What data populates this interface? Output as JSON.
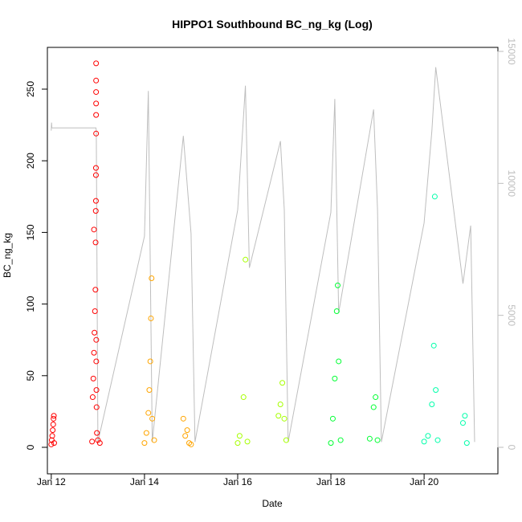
{
  "chart_data": {
    "type": "scatter",
    "title": "HIPPO1 Southbound BC_ng_kg (Log)",
    "xlabel": "Date",
    "ylabel": "BC_ng_kg",
    "ylim": [
      0,
      270
    ],
    "y_ticks": [
      0,
      50,
      100,
      150,
      200,
      250
    ],
    "xlim": [
      "2009-01-11T22:00",
      "2009-01-21T14:00"
    ],
    "x_ticks": [
      {
        "label": "Jan 12",
        "value": "2009-01-12"
      },
      {
        "label": "Jan 14",
        "value": "2009-01-14"
      },
      {
        "label": "Jan 16",
        "value": "2009-01-16"
      },
      {
        "label": "Jan 18",
        "value": "2009-01-18"
      },
      {
        "label": "Jan 20",
        "value": "2009-01-20"
      }
    ],
    "secondary_axis": {
      "ylim": [
        -300,
        15000
      ],
      "ticks": [
        0,
        5000,
        10000,
        15000
      ],
      "color": "#bebebe"
    },
    "series": [
      {
        "color": "#ff0000",
        "points": [
          [
            "2009-01-12T00:00",
            2
          ],
          [
            "2009-01-12T00:15",
            5
          ],
          [
            "2009-01-12T00:30",
            8
          ],
          [
            "2009-01-12T00:45",
            12
          ],
          [
            "2009-01-12T01:00",
            16
          ],
          [
            "2009-01-12T01:10",
            20
          ],
          [
            "2009-01-12T01:20",
            22
          ],
          [
            "2009-01-12T01:30",
            3
          ],
          [
            "2009-01-12T21:00",
            4
          ],
          [
            "2009-01-12T21:20",
            35
          ],
          [
            "2009-01-12T21:40",
            48
          ],
          [
            "2009-01-12T22:00",
            66
          ],
          [
            "2009-01-12T22:00",
            152
          ],
          [
            "2009-01-12T22:15",
            80
          ],
          [
            "2009-01-12T22:30",
            95
          ],
          [
            "2009-01-12T22:45",
            110
          ],
          [
            "2009-01-12T22:50",
            143
          ],
          [
            "2009-01-12T22:55",
            165
          ],
          [
            "2009-01-12T23:00",
            172
          ],
          [
            "2009-01-12T23:00",
            190
          ],
          [
            "2009-01-12T23:00",
            195
          ],
          [
            "2009-01-12T23:05",
            219
          ],
          [
            "2009-01-12T23:05",
            232
          ],
          [
            "2009-01-12T23:05",
            240
          ],
          [
            "2009-01-12T23:05",
            248
          ],
          [
            "2009-01-12T23:05",
            256
          ],
          [
            "2009-01-12T23:05",
            268
          ],
          [
            "2009-01-12T23:10",
            75
          ],
          [
            "2009-01-12T23:10",
            60
          ],
          [
            "2009-01-12T23:15",
            40
          ],
          [
            "2009-01-12T23:20",
            28
          ],
          [
            "2009-01-12T23:30",
            10
          ],
          [
            "2009-01-13T00:00",
            5
          ],
          [
            "2009-01-13T01:00",
            3
          ]
        ]
      },
      {
        "color": "#ffa500",
        "points": [
          [
            "2009-01-14T00:00",
            3
          ],
          [
            "2009-01-14T01:00",
            10
          ],
          [
            "2009-01-14T02:00",
            24
          ],
          [
            "2009-01-14T02:30",
            40
          ],
          [
            "2009-01-14T03:00",
            60
          ],
          [
            "2009-01-14T03:20",
            90
          ],
          [
            "2009-01-14T03:40",
            118
          ],
          [
            "2009-01-14T04:00",
            20
          ],
          [
            "2009-01-14T05:00",
            5
          ],
          [
            "2009-01-14T20:00",
            20
          ],
          [
            "2009-01-14T21:00",
            8
          ],
          [
            "2009-01-14T22:00",
            12
          ],
          [
            "2009-01-14T23:00",
            3
          ],
          [
            "2009-01-15T00:00",
            2
          ]
        ]
      },
      {
        "color": "#a6ff00",
        "points": [
          [
            "2009-01-16T00:00",
            3
          ],
          [
            "2009-01-16T01:00",
            8
          ],
          [
            "2009-01-16T03:00",
            35
          ],
          [
            "2009-01-16T04:00",
            131
          ],
          [
            "2009-01-16T05:00",
            4
          ],
          [
            "2009-01-16T21:00",
            22
          ],
          [
            "2009-01-16T22:00",
            30
          ],
          [
            "2009-01-16T23:00",
            45
          ],
          [
            "2009-01-17T00:00",
            20
          ],
          [
            "2009-01-17T01:00",
            5
          ]
        ]
      },
      {
        "color": "#00ff33",
        "points": [
          [
            "2009-01-18T00:00",
            3
          ],
          [
            "2009-01-18T01:00",
            20
          ],
          [
            "2009-01-18T02:00",
            48
          ],
          [
            "2009-01-18T03:00",
            95
          ],
          [
            "2009-01-18T03:30",
            113
          ],
          [
            "2009-01-18T04:00",
            60
          ],
          [
            "2009-01-18T05:00",
            5
          ],
          [
            "2009-01-18T20:00",
            6
          ],
          [
            "2009-01-18T22:00",
            28
          ],
          [
            "2009-01-18T23:00",
            35
          ],
          [
            "2009-01-19T00:00",
            5
          ]
        ]
      },
      {
        "color": "#00ffaa",
        "points": [
          [
            "2009-01-20T00:00",
            4
          ],
          [
            "2009-01-20T02:00",
            8
          ],
          [
            "2009-01-20T04:00",
            30
          ],
          [
            "2009-01-20T05:00",
            71
          ],
          [
            "2009-01-20T05:30",
            175
          ],
          [
            "2009-01-20T06:00",
            40
          ],
          [
            "2009-01-20T07:00",
            5
          ],
          [
            "2009-01-20T20:00",
            17
          ],
          [
            "2009-01-20T21:00",
            22
          ],
          [
            "2009-01-20T22:00",
            3
          ]
        ]
      }
    ],
    "altitude_track": [
      [
        "2009-01-12T00:00",
        12000
      ],
      [
        "2009-01-12T00:10",
        12300
      ],
      [
        "2009-01-12T00:20",
        12100
      ],
      [
        "2009-01-12T23:00",
        12100
      ],
      [
        "2009-01-12T23:10",
        12000
      ],
      [
        "2009-01-13T00:00",
        200
      ],
      [
        "2009-01-14T00:00",
        8000
      ],
      [
        "2009-01-14T02:00",
        13500
      ],
      [
        "2009-01-14T04:00",
        200
      ],
      [
        "2009-01-14T20:00",
        11800
      ],
      [
        "2009-01-15T00:00",
        8100
      ],
      [
        "2009-01-15T02:00",
        200
      ],
      [
        "2009-01-16T00:00",
        9000
      ],
      [
        "2009-01-16T04:00",
        13700
      ],
      [
        "2009-01-16T06:00",
        6800
      ],
      [
        "2009-01-16T22:00",
        11600
      ],
      [
        "2009-01-17T00:00",
        9000
      ],
      [
        "2009-01-17T02:00",
        200
      ],
      [
        "2009-01-18T00:00",
        8900
      ],
      [
        "2009-01-18T02:00",
        13200
      ],
      [
        "2009-01-18T04:00",
        5100
      ],
      [
        "2009-01-18T22:00",
        12800
      ],
      [
        "2009-01-19T00:00",
        9000
      ],
      [
        "2009-01-19T02:00",
        200
      ],
      [
        "2009-01-20T00:00",
        8500
      ],
      [
        "2009-01-20T04:00",
        12000
      ],
      [
        "2009-01-20T06:00",
        14400
      ],
      [
        "2009-01-20T20:00",
        6200
      ],
      [
        "2009-01-21T00:00",
        8400
      ],
      [
        "2009-01-21T02:00",
        200
      ]
    ],
    "grid": false,
    "legend": "none"
  }
}
